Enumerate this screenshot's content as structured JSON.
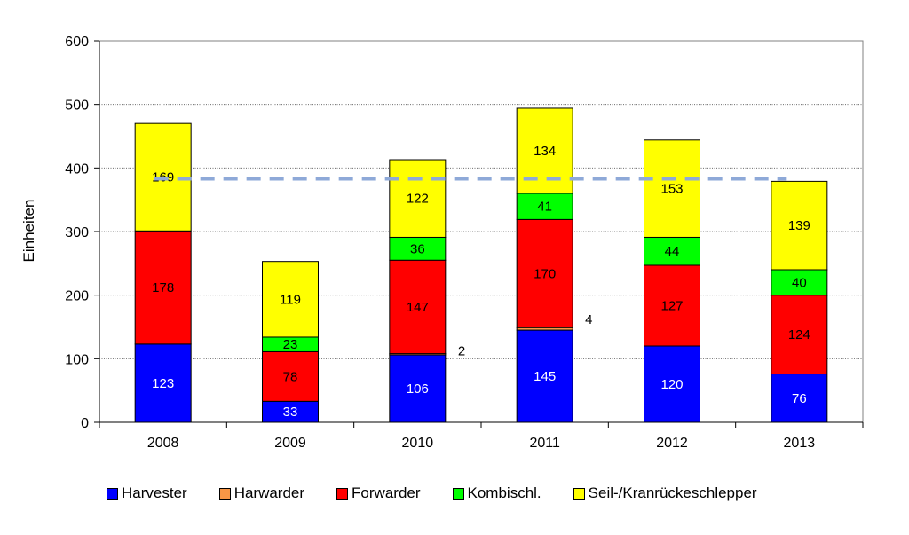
{
  "chart_data": {
    "type": "bar",
    "stacked": true,
    "categories": [
      "2008",
      "2009",
      "2010",
      "2011",
      "2012",
      "2013"
    ],
    "ylabel": "Einheiten",
    "ylim": [
      0,
      600
    ],
    "yticks": [
      "0",
      "100",
      "200",
      "300",
      "400",
      "500",
      "600"
    ],
    "grid": true,
    "legend_position": "bottom",
    "reference_line": {
      "y": 383,
      "style": "dashed",
      "color": "#8EA9D8"
    },
    "series": [
      {
        "name": "Harvester",
        "color": "#0000FF",
        "label_color": "#FFFFFF",
        "values": [
          123,
          33,
          106,
          145,
          120,
          76
        ]
      },
      {
        "name": "Harwarder",
        "color": "#F79646",
        "label_color": "#000000",
        "values": [
          0,
          0,
          2,
          4,
          0,
          0
        ]
      },
      {
        "name": "Forwarder",
        "color": "#FF0000",
        "label_color": "#000000",
        "values": [
          178,
          78,
          147,
          170,
          127,
          124
        ]
      },
      {
        "name": "Kombischl.",
        "color": "#00FF00",
        "label_color": "#000000",
        "values": [
          0,
          23,
          36,
          41,
          44,
          40
        ]
      },
      {
        "name": "Seil-/Kranrückeschlepper",
        "color": "#FFFF00",
        "label_color": "#000000",
        "values": [
          169,
          119,
          122,
          134,
          153,
          139
        ]
      }
    ],
    "data_labels": [
      [
        "123",
        "",
        "178",
        "",
        "169"
      ],
      [
        "33",
        "",
        "78",
        "23",
        "119"
      ],
      [
        "106",
        "2",
        "147",
        "36",
        "122"
      ],
      [
        "145",
        "4",
        "170",
        "41",
        "134"
      ],
      [
        "120",
        "",
        "127",
        "44",
        "153"
      ],
      [
        "76",
        "",
        "124",
        "40",
        "139"
      ]
    ]
  }
}
